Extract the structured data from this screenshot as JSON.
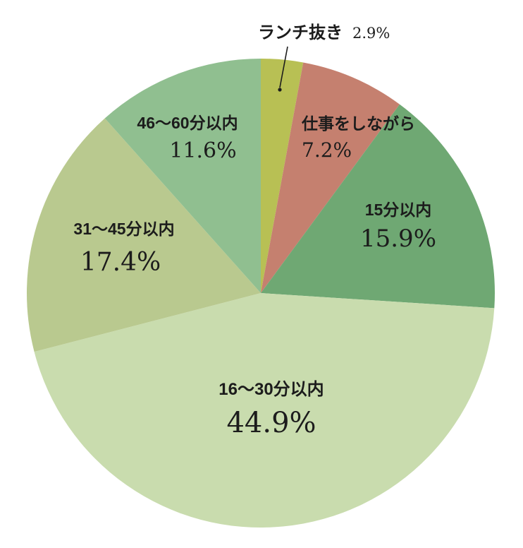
{
  "chart_data": {
    "type": "pie",
    "title": "",
    "legend_position": "none",
    "background": "#ffffff",
    "start_angle_deg": 0,
    "direction": "clockwise",
    "units": "%",
    "segments": [
      {
        "label": "ランチ抜き",
        "value": 2.9,
        "display": "2.9%",
        "color": "#b8c054"
      },
      {
        "label": "仕事をしながら",
        "value": 7.2,
        "display": "7.2%",
        "color": "#c5806f"
      },
      {
        "label": "15分以内",
        "value": 15.9,
        "display": "15.9%",
        "color": "#6fa873"
      },
      {
        "label": "16〜30分以内",
        "value": 44.9,
        "display": "44.9%",
        "color": "#c9dcae"
      },
      {
        "label": "31〜45分以内",
        "value": 17.4,
        "display": "17.4%",
        "color": "#b9c98f"
      },
      {
        "label": "46〜60分以内",
        "value": 11.6,
        "display": "11.6%",
        "color": "#90bf90"
      }
    ],
    "text_color": "#1c1c1c"
  }
}
